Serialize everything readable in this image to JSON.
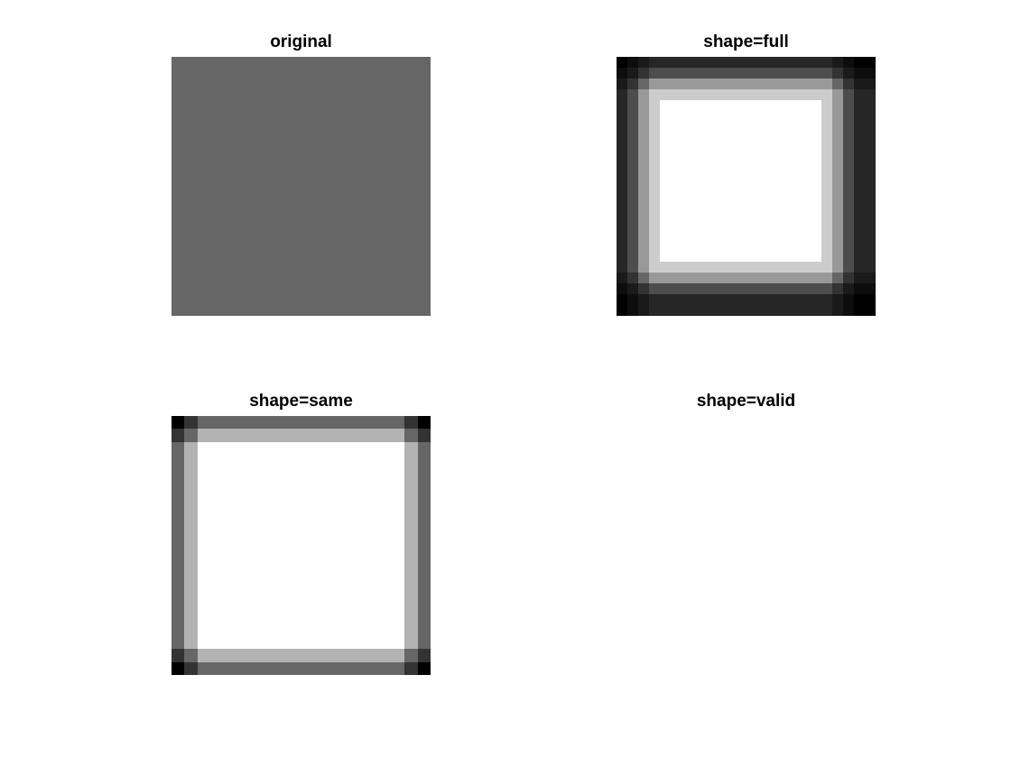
{
  "chart_data": [
    {
      "type": "heatmap",
      "title": "original",
      "colormap": "gray",
      "clim": [
        0,
        1
      ],
      "grid": false,
      "values": [
        [
          0.4,
          0.4,
          0.4,
          0.4,
          0.4,
          0.4,
          0.4,
          0.4,
          0.4,
          0.4
        ],
        [
          0.4,
          0.4,
          0.4,
          0.4,
          0.4,
          0.4,
          0.4,
          0.4,
          0.4,
          0.4
        ],
        [
          0.4,
          0.4,
          0.4,
          0.4,
          0.4,
          0.4,
          0.4,
          0.4,
          0.4,
          0.4
        ],
        [
          0.4,
          0.4,
          0.4,
          0.4,
          0.4,
          0.4,
          0.4,
          0.4,
          0.4,
          0.4
        ],
        [
          0.4,
          0.4,
          0.4,
          0.4,
          0.4,
          0.4,
          0.4,
          0.4,
          0.4,
          0.4
        ],
        [
          0.4,
          0.4,
          0.4,
          0.4,
          0.4,
          0.4,
          0.4,
          0.4,
          0.4,
          0.4
        ],
        [
          0.4,
          0.4,
          0.4,
          0.4,
          0.4,
          0.4,
          0.4,
          0.4,
          0.4,
          0.4
        ],
        [
          0.4,
          0.4,
          0.4,
          0.4,
          0.4,
          0.4,
          0.4,
          0.4,
          0.4,
          0.4
        ],
        [
          0.4,
          0.4,
          0.4,
          0.4,
          0.4,
          0.4,
          0.4,
          0.4,
          0.4,
          0.4
        ],
        [
          0.4,
          0.4,
          0.4,
          0.4,
          0.4,
          0.4,
          0.4,
          0.4,
          0.4,
          0.4
        ]
      ]
    },
    {
      "type": "heatmap",
      "title": "shape=full",
      "colormap": "gray",
      "clim": [
        0,
        1
      ],
      "grid": false,
      "values": [
        [
          0.0,
          0.05,
          0.1,
          0.15,
          0.15,
          0.15,
          0.15,
          0.15,
          0.15,
          0.15,
          0.15,
          0.15,
          0.15,
          0.15,
          0.15,
          0.15,
          0.15,
          0.15,
          0.15,
          0.15,
          0.1,
          0.05,
          0.0,
          0.0
        ],
        [
          0.05,
          0.1,
          0.2,
          0.3,
          0.3,
          0.3,
          0.3,
          0.3,
          0.3,
          0.3,
          0.3,
          0.3,
          0.3,
          0.3,
          0.3,
          0.3,
          0.3,
          0.3,
          0.3,
          0.3,
          0.2,
          0.1,
          0.05,
          0.05
        ],
        [
          0.1,
          0.2,
          0.4,
          0.6,
          0.6,
          0.6,
          0.6,
          0.6,
          0.6,
          0.6,
          0.6,
          0.6,
          0.6,
          0.6,
          0.6,
          0.6,
          0.6,
          0.6,
          0.6,
          0.6,
          0.4,
          0.2,
          0.1,
          0.1
        ],
        [
          0.15,
          0.3,
          0.6,
          0.8,
          0.8,
          0.8,
          0.8,
          0.8,
          0.8,
          0.8,
          0.8,
          0.8,
          0.8,
          0.8,
          0.8,
          0.8,
          0.8,
          0.8,
          0.8,
          0.8,
          0.6,
          0.3,
          0.15,
          0.15
        ],
        [
          0.15,
          0.3,
          0.6,
          0.8,
          1.0,
          1.0,
          1.0,
          1.0,
          1.0,
          1.0,
          1.0,
          1.0,
          1.0,
          1.0,
          1.0,
          1.0,
          1.0,
          1.0,
          1.0,
          0.8,
          0.6,
          0.3,
          0.15,
          0.15
        ],
        [
          0.15,
          0.3,
          0.6,
          0.8,
          1.0,
          1.0,
          1.0,
          1.0,
          1.0,
          1.0,
          1.0,
          1.0,
          1.0,
          1.0,
          1.0,
          1.0,
          1.0,
          1.0,
          1.0,
          0.8,
          0.6,
          0.3,
          0.15,
          0.15
        ],
        [
          0.15,
          0.3,
          0.6,
          0.8,
          1.0,
          1.0,
          1.0,
          1.0,
          1.0,
          1.0,
          1.0,
          1.0,
          1.0,
          1.0,
          1.0,
          1.0,
          1.0,
          1.0,
          1.0,
          0.8,
          0.6,
          0.3,
          0.15,
          0.15
        ],
        [
          0.15,
          0.3,
          0.6,
          0.8,
          1.0,
          1.0,
          1.0,
          1.0,
          1.0,
          1.0,
          1.0,
          1.0,
          1.0,
          1.0,
          1.0,
          1.0,
          1.0,
          1.0,
          1.0,
          0.8,
          0.6,
          0.3,
          0.15,
          0.15
        ],
        [
          0.15,
          0.3,
          0.6,
          0.8,
          1.0,
          1.0,
          1.0,
          1.0,
          1.0,
          1.0,
          1.0,
          1.0,
          1.0,
          1.0,
          1.0,
          1.0,
          1.0,
          1.0,
          1.0,
          0.8,
          0.6,
          0.3,
          0.15,
          0.15
        ],
        [
          0.15,
          0.3,
          0.6,
          0.8,
          1.0,
          1.0,
          1.0,
          1.0,
          1.0,
          1.0,
          1.0,
          1.0,
          1.0,
          1.0,
          1.0,
          1.0,
          1.0,
          1.0,
          1.0,
          0.8,
          0.6,
          0.3,
          0.15,
          0.15
        ],
        [
          0.15,
          0.3,
          0.6,
          0.8,
          1.0,
          1.0,
          1.0,
          1.0,
          1.0,
          1.0,
          1.0,
          1.0,
          1.0,
          1.0,
          1.0,
          1.0,
          1.0,
          1.0,
          1.0,
          0.8,
          0.6,
          0.3,
          0.15,
          0.15
        ],
        [
          0.15,
          0.3,
          0.6,
          0.8,
          1.0,
          1.0,
          1.0,
          1.0,
          1.0,
          1.0,
          1.0,
          1.0,
          1.0,
          1.0,
          1.0,
          1.0,
          1.0,
          1.0,
          1.0,
          0.8,
          0.6,
          0.3,
          0.15,
          0.15
        ],
        [
          0.15,
          0.3,
          0.6,
          0.8,
          1.0,
          1.0,
          1.0,
          1.0,
          1.0,
          1.0,
          1.0,
          1.0,
          1.0,
          1.0,
          1.0,
          1.0,
          1.0,
          1.0,
          1.0,
          0.8,
          0.6,
          0.3,
          0.15,
          0.15
        ],
        [
          0.15,
          0.3,
          0.6,
          0.8,
          1.0,
          1.0,
          1.0,
          1.0,
          1.0,
          1.0,
          1.0,
          1.0,
          1.0,
          1.0,
          1.0,
          1.0,
          1.0,
          1.0,
          1.0,
          0.8,
          0.6,
          0.3,
          0.15,
          0.15
        ],
        [
          0.15,
          0.3,
          0.6,
          0.8,
          1.0,
          1.0,
          1.0,
          1.0,
          1.0,
          1.0,
          1.0,
          1.0,
          1.0,
          1.0,
          1.0,
          1.0,
          1.0,
          1.0,
          1.0,
          0.8,
          0.6,
          0.3,
          0.15,
          0.15
        ],
        [
          0.15,
          0.3,
          0.6,
          0.8,
          1.0,
          1.0,
          1.0,
          1.0,
          1.0,
          1.0,
          1.0,
          1.0,
          1.0,
          1.0,
          1.0,
          1.0,
          1.0,
          1.0,
          1.0,
          0.8,
          0.6,
          0.3,
          0.15,
          0.15
        ],
        [
          0.15,
          0.3,
          0.6,
          0.8,
          1.0,
          1.0,
          1.0,
          1.0,
          1.0,
          1.0,
          1.0,
          1.0,
          1.0,
          1.0,
          1.0,
          1.0,
          1.0,
          1.0,
          1.0,
          0.8,
          0.6,
          0.3,
          0.15,
          0.15
        ],
        [
          0.15,
          0.3,
          0.6,
          0.8,
          1.0,
          1.0,
          1.0,
          1.0,
          1.0,
          1.0,
          1.0,
          1.0,
          1.0,
          1.0,
          1.0,
          1.0,
          1.0,
          1.0,
          1.0,
          0.8,
          0.6,
          0.3,
          0.15,
          0.15
        ],
        [
          0.15,
          0.3,
          0.6,
          0.8,
          1.0,
          1.0,
          1.0,
          1.0,
          1.0,
          1.0,
          1.0,
          1.0,
          1.0,
          1.0,
          1.0,
          1.0,
          1.0,
          1.0,
          1.0,
          0.8,
          0.6,
          0.3,
          0.15,
          0.15
        ],
        [
          0.15,
          0.3,
          0.6,
          0.8,
          0.8,
          0.8,
          0.8,
          0.8,
          0.8,
          0.8,
          0.8,
          0.8,
          0.8,
          0.8,
          0.8,
          0.8,
          0.8,
          0.8,
          0.8,
          0.8,
          0.6,
          0.3,
          0.15,
          0.15
        ],
        [
          0.1,
          0.2,
          0.4,
          0.6,
          0.6,
          0.6,
          0.6,
          0.6,
          0.6,
          0.6,
          0.6,
          0.6,
          0.6,
          0.6,
          0.6,
          0.6,
          0.6,
          0.6,
          0.6,
          0.6,
          0.4,
          0.2,
          0.1,
          0.1
        ],
        [
          0.05,
          0.1,
          0.2,
          0.3,
          0.3,
          0.3,
          0.3,
          0.3,
          0.3,
          0.3,
          0.3,
          0.3,
          0.3,
          0.3,
          0.3,
          0.3,
          0.3,
          0.3,
          0.3,
          0.3,
          0.2,
          0.1,
          0.05,
          0.05
        ],
        [
          0.0,
          0.05,
          0.1,
          0.15,
          0.15,
          0.15,
          0.15,
          0.15,
          0.15,
          0.15,
          0.15,
          0.15,
          0.15,
          0.15,
          0.15,
          0.15,
          0.15,
          0.15,
          0.15,
          0.15,
          0.1,
          0.05,
          0.0,
          0.0
        ],
        [
          0.0,
          0.05,
          0.1,
          0.15,
          0.15,
          0.15,
          0.15,
          0.15,
          0.15,
          0.15,
          0.15,
          0.15,
          0.15,
          0.15,
          0.15,
          0.15,
          0.15,
          0.15,
          0.15,
          0.15,
          0.1,
          0.05,
          0.0,
          0.0
        ]
      ]
    },
    {
      "type": "heatmap",
      "title": "shape=same",
      "colormap": "gray",
      "clim": [
        0,
        1
      ],
      "grid": false,
      "values": [
        [
          0.0,
          0.2,
          0.4,
          0.4,
          0.4,
          0.4,
          0.4,
          0.4,
          0.4,
          0.4,
          0.4,
          0.4,
          0.4,
          0.4,
          0.4,
          0.4,
          0.4,
          0.4,
          0.2,
          0.0
        ],
        [
          0.2,
          0.4,
          0.7,
          0.7,
          0.7,
          0.7,
          0.7,
          0.7,
          0.7,
          0.7,
          0.7,
          0.7,
          0.7,
          0.7,
          0.7,
          0.7,
          0.7,
          0.7,
          0.4,
          0.2
        ],
        [
          0.4,
          0.7,
          1.0,
          1.0,
          1.0,
          1.0,
          1.0,
          1.0,
          1.0,
          1.0,
          1.0,
          1.0,
          1.0,
          1.0,
          1.0,
          1.0,
          1.0,
          1.0,
          0.7,
          0.4
        ],
        [
          0.4,
          0.7,
          1.0,
          1.0,
          1.0,
          1.0,
          1.0,
          1.0,
          1.0,
          1.0,
          1.0,
          1.0,
          1.0,
          1.0,
          1.0,
          1.0,
          1.0,
          1.0,
          0.7,
          0.4
        ],
        [
          0.4,
          0.7,
          1.0,
          1.0,
          1.0,
          1.0,
          1.0,
          1.0,
          1.0,
          1.0,
          1.0,
          1.0,
          1.0,
          1.0,
          1.0,
          1.0,
          1.0,
          1.0,
          0.7,
          0.4
        ],
        [
          0.4,
          0.7,
          1.0,
          1.0,
          1.0,
          1.0,
          1.0,
          1.0,
          1.0,
          1.0,
          1.0,
          1.0,
          1.0,
          1.0,
          1.0,
          1.0,
          1.0,
          1.0,
          0.7,
          0.4
        ],
        [
          0.4,
          0.7,
          1.0,
          1.0,
          1.0,
          1.0,
          1.0,
          1.0,
          1.0,
          1.0,
          1.0,
          1.0,
          1.0,
          1.0,
          1.0,
          1.0,
          1.0,
          1.0,
          0.7,
          0.4
        ],
        [
          0.4,
          0.7,
          1.0,
          1.0,
          1.0,
          1.0,
          1.0,
          1.0,
          1.0,
          1.0,
          1.0,
          1.0,
          1.0,
          1.0,
          1.0,
          1.0,
          1.0,
          1.0,
          0.7,
          0.4
        ],
        [
          0.4,
          0.7,
          1.0,
          1.0,
          1.0,
          1.0,
          1.0,
          1.0,
          1.0,
          1.0,
          1.0,
          1.0,
          1.0,
          1.0,
          1.0,
          1.0,
          1.0,
          1.0,
          0.7,
          0.4
        ],
        [
          0.4,
          0.7,
          1.0,
          1.0,
          1.0,
          1.0,
          1.0,
          1.0,
          1.0,
          1.0,
          1.0,
          1.0,
          1.0,
          1.0,
          1.0,
          1.0,
          1.0,
          1.0,
          0.7,
          0.4
        ],
        [
          0.4,
          0.7,
          1.0,
          1.0,
          1.0,
          1.0,
          1.0,
          1.0,
          1.0,
          1.0,
          1.0,
          1.0,
          1.0,
          1.0,
          1.0,
          1.0,
          1.0,
          1.0,
          0.7,
          0.4
        ],
        [
          0.4,
          0.7,
          1.0,
          1.0,
          1.0,
          1.0,
          1.0,
          1.0,
          1.0,
          1.0,
          1.0,
          1.0,
          1.0,
          1.0,
          1.0,
          1.0,
          1.0,
          1.0,
          0.7,
          0.4
        ],
        [
          0.4,
          0.7,
          1.0,
          1.0,
          1.0,
          1.0,
          1.0,
          1.0,
          1.0,
          1.0,
          1.0,
          1.0,
          1.0,
          1.0,
          1.0,
          1.0,
          1.0,
          1.0,
          0.7,
          0.4
        ],
        [
          0.4,
          0.7,
          1.0,
          1.0,
          1.0,
          1.0,
          1.0,
          1.0,
          1.0,
          1.0,
          1.0,
          1.0,
          1.0,
          1.0,
          1.0,
          1.0,
          1.0,
          1.0,
          0.7,
          0.4
        ],
        [
          0.4,
          0.7,
          1.0,
          1.0,
          1.0,
          1.0,
          1.0,
          1.0,
          1.0,
          1.0,
          1.0,
          1.0,
          1.0,
          1.0,
          1.0,
          1.0,
          1.0,
          1.0,
          0.7,
          0.4
        ],
        [
          0.4,
          0.7,
          1.0,
          1.0,
          1.0,
          1.0,
          1.0,
          1.0,
          1.0,
          1.0,
          1.0,
          1.0,
          1.0,
          1.0,
          1.0,
          1.0,
          1.0,
          1.0,
          0.7,
          0.4
        ],
        [
          0.4,
          0.7,
          1.0,
          1.0,
          1.0,
          1.0,
          1.0,
          1.0,
          1.0,
          1.0,
          1.0,
          1.0,
          1.0,
          1.0,
          1.0,
          1.0,
          1.0,
          1.0,
          0.7,
          0.4
        ],
        [
          0.4,
          0.7,
          1.0,
          1.0,
          1.0,
          1.0,
          1.0,
          1.0,
          1.0,
          1.0,
          1.0,
          1.0,
          1.0,
          1.0,
          1.0,
          1.0,
          1.0,
          1.0,
          0.7,
          0.4
        ],
        [
          0.2,
          0.4,
          0.7,
          0.7,
          0.7,
          0.7,
          0.7,
          0.7,
          0.7,
          0.7,
          0.7,
          0.7,
          0.7,
          0.7,
          0.7,
          0.7,
          0.7,
          0.7,
          0.4,
          0.2
        ],
        [
          0.0,
          0.2,
          0.4,
          0.4,
          0.4,
          0.4,
          0.4,
          0.4,
          0.4,
          0.4,
          0.4,
          0.4,
          0.4,
          0.4,
          0.4,
          0.4,
          0.4,
          0.4,
          0.2,
          0.0
        ]
      ]
    },
    {
      "type": "heatmap",
      "title": "shape=valid",
      "colormap": "gray",
      "clim": [
        0,
        1
      ],
      "grid": false,
      "values": []
    }
  ]
}
